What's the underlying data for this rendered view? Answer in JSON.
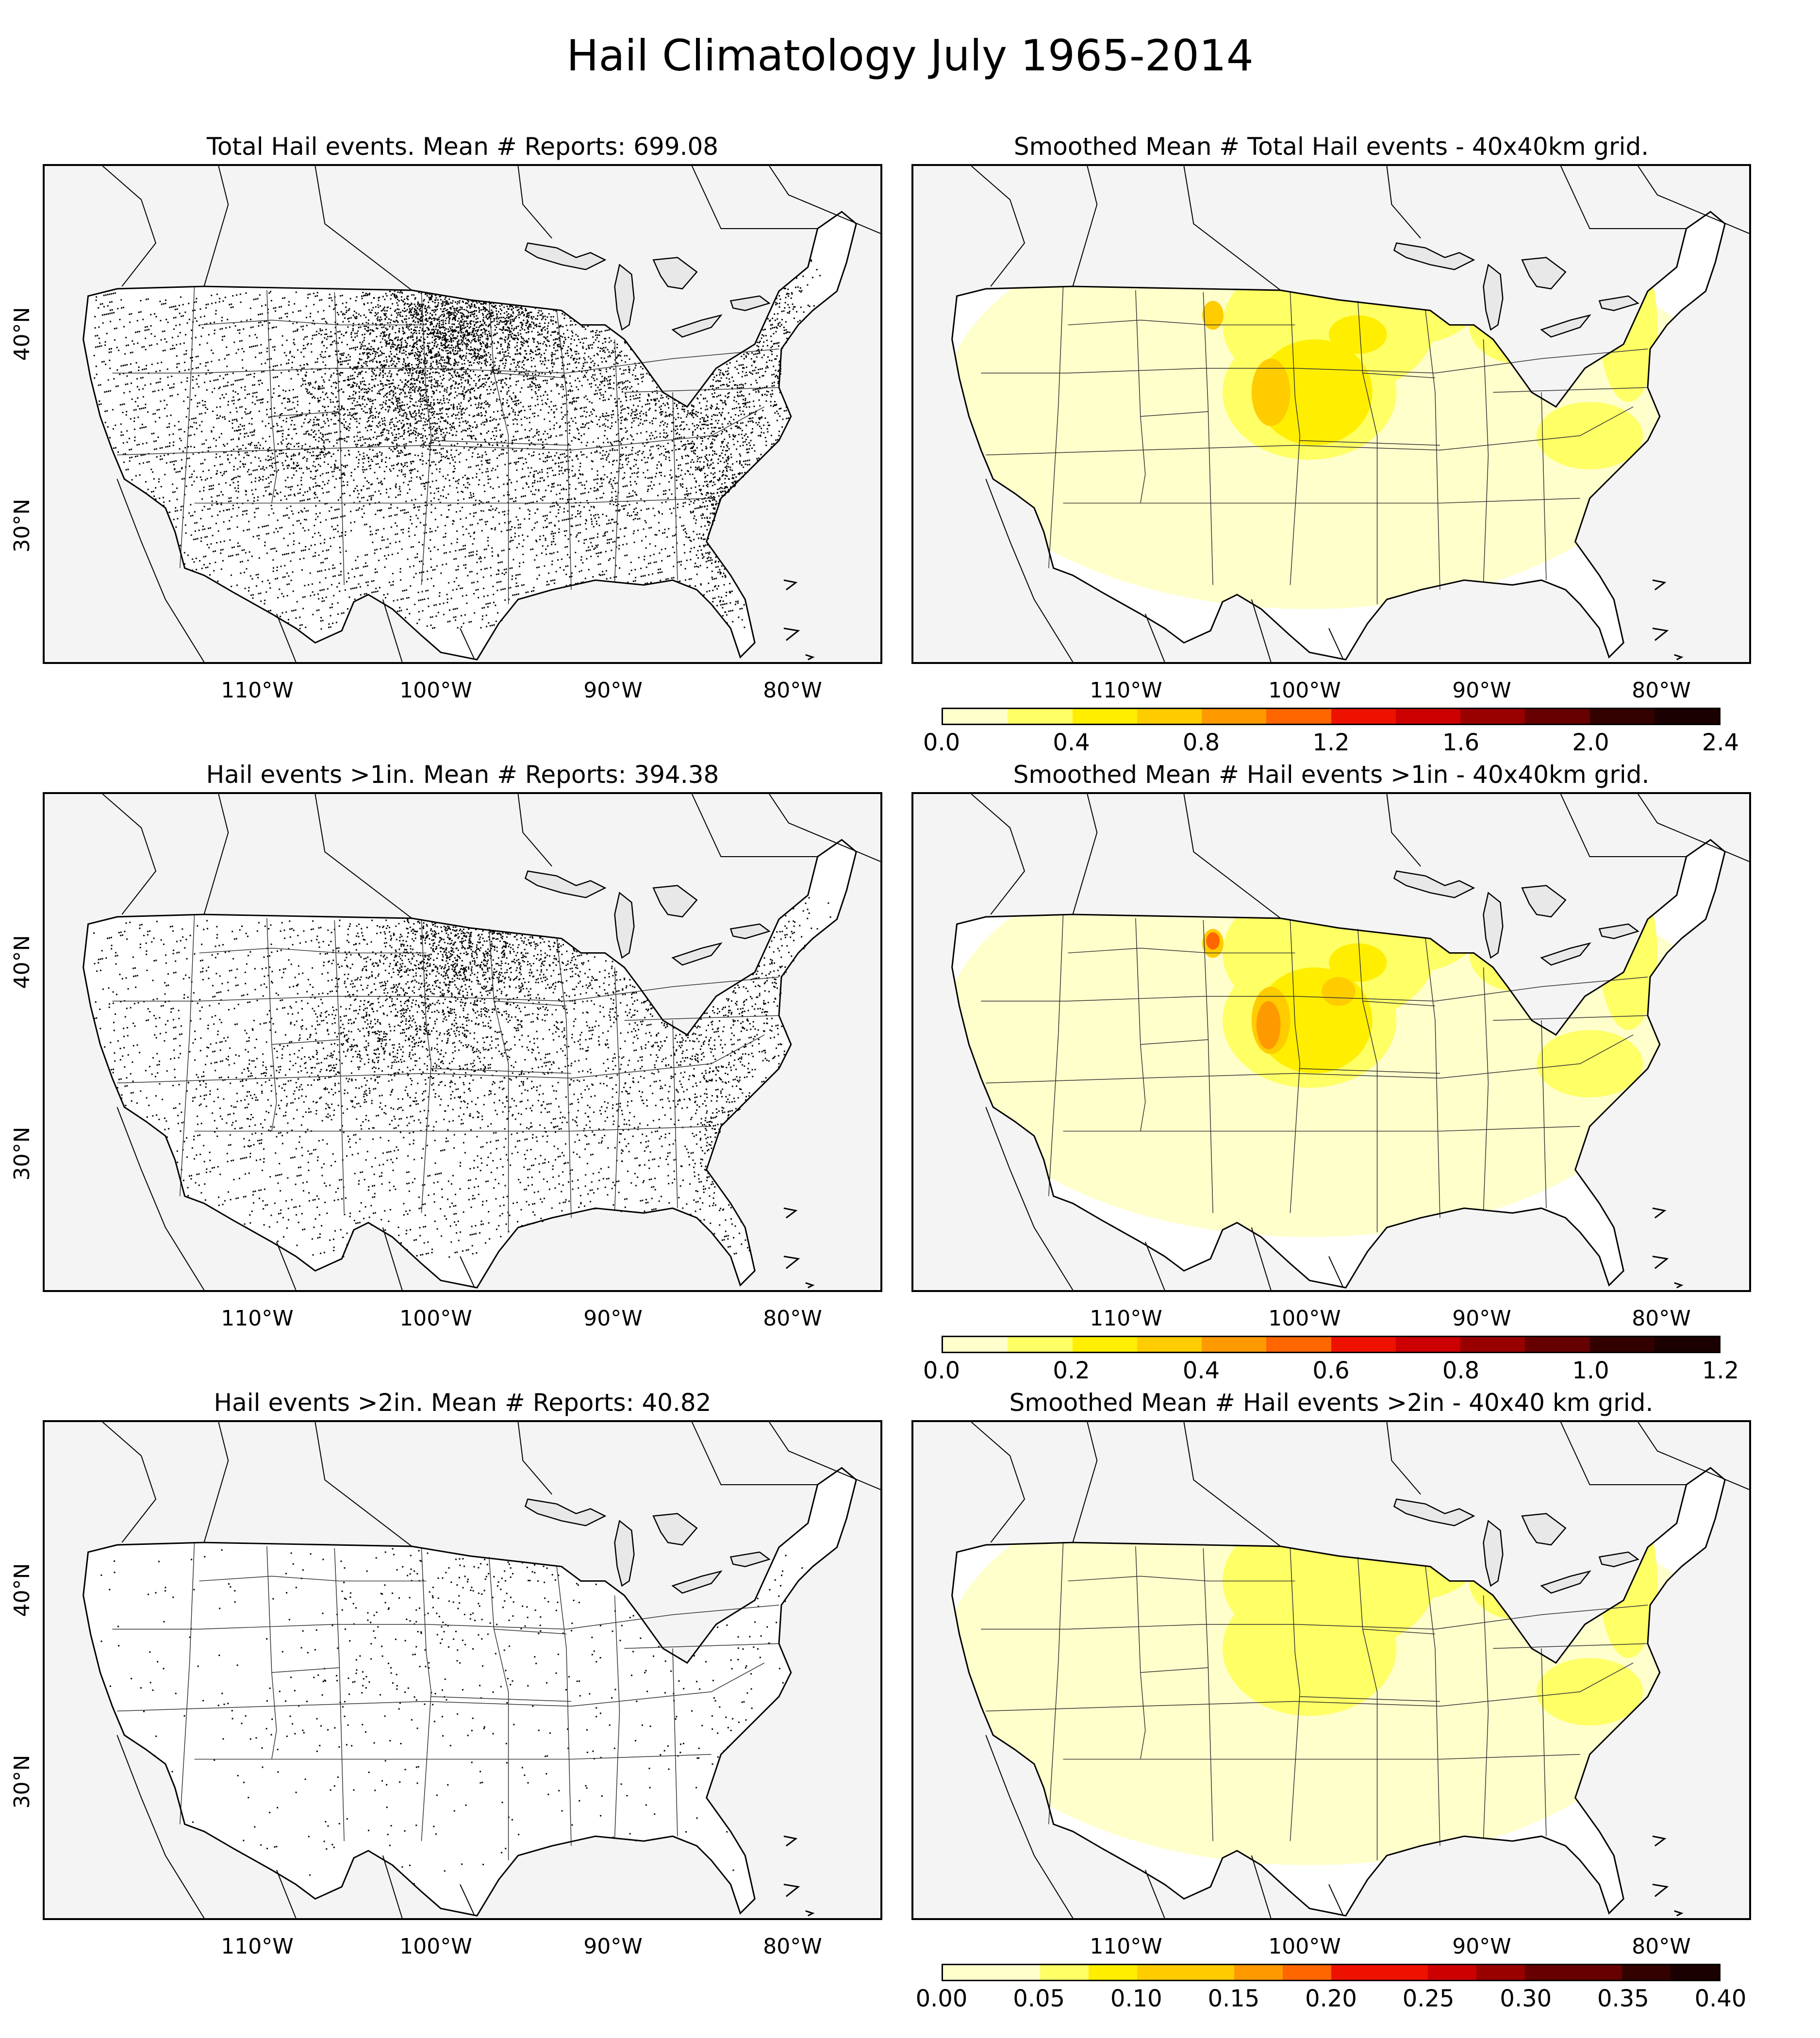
{
  "figure": {
    "title": "Hail Climatology July 1965-2014"
  },
  "panels": {
    "total_points": {
      "title": "Total Hail events. Mean # Reports: 699.08",
      "density": 1.0
    },
    "total_smooth": {
      "title": "Smoothed Mean # Total Hail events - 40x40km grid.",
      "intensity": 1.0
    },
    "gt1_points": {
      "title": "Hail events >1in. Mean # Reports: 394.38",
      "density": 0.58
    },
    "gt1_smooth": {
      "title": "Smoothed Mean # Hail events >1in - 40x40km grid.",
      "intensity": 1.15
    },
    "gt2_points": {
      "title": "Hail events >2in. Mean # Reports: 40.82",
      "density": 0.07
    },
    "gt2_smooth": {
      "title": "Smoothed Mean # Hail events >2in - 40x40 km grid.",
      "intensity": 0.7
    }
  },
  "axes": {
    "lon_labels": [
      "110°W",
      "100°W",
      "90°W",
      "80°W"
    ],
    "lat_labels": [
      "40°N",
      "30°N"
    ]
  },
  "colorbars": {
    "colors": [
      "#ffffcc",
      "#ffff66",
      "#ffee00",
      "#ffcc00",
      "#ff9900",
      "#ff6600",
      "#ee1100",
      "#cc0000",
      "#990000",
      "#660000",
      "#330000",
      "#1a0000"
    ],
    "cb1": {
      "ticks": [
        "0.0",
        "0.4",
        "0.8",
        "1.2",
        "1.6",
        "2.0",
        "2.4"
      ]
    },
    "cb2": {
      "ticks": [
        "0.0",
        "0.2",
        "0.4",
        "0.6",
        "0.8",
        "1.0",
        "1.2"
      ]
    },
    "cb3": {
      "ticks": [
        "0.00",
        "0.05",
        "0.10",
        "0.15",
        "0.20",
        "0.25",
        "0.30",
        "0.35",
        "0.40"
      ]
    }
  },
  "colors": {
    "ocean": "#f4f4f4",
    "land": "#ffffff",
    "lakes": "#e8e8e8",
    "border": "#000000"
  }
}
